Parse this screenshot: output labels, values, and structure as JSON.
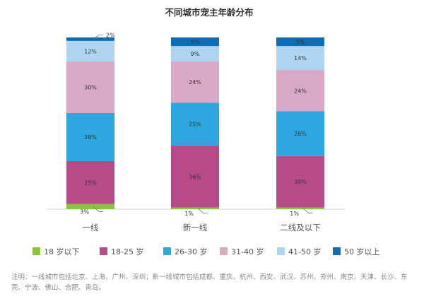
{
  "chart_data": {
    "type": "bar",
    "stacked": true,
    "percent": true,
    "title": "不同城市宠主年龄分布",
    "categories": [
      "一线",
      "新一线",
      "二线及以下"
    ],
    "series": [
      {
        "name": "18 岁以下",
        "color": "#8ac43f",
        "values": [
          3,
          1,
          1
        ]
      },
      {
        "name": "18-25 岁",
        "color": "#b74b89",
        "values": [
          25,
          36,
          30
        ]
      },
      {
        "name": "26-30 岁",
        "color": "#2ea7e0",
        "values": [
          28,
          25,
          26
        ]
      },
      {
        "name": "31-40 岁",
        "color": "#d9a8c6",
        "values": [
          30,
          24,
          24
        ]
      },
      {
        "name": "41-50 岁",
        "color": "#aed4f1",
        "values": [
          12,
          9,
          14
        ]
      },
      {
        "name": "50 岁以上",
        "color": "#0e6db5",
        "values": [
          2,
          5,
          5
        ]
      }
    ],
    "ylim": [
      0,
      100
    ],
    "grid": false,
    "legend_position": "bottom",
    "value_suffix": "%"
  },
  "note": "注明：一线城市包括北京、上海、广州、深圳；新一线城市包括成都、重庆、杭州、西安、武汉、苏州、郑州、南京、天津、长沙、东莞、宁波、佛山、合肥、青岛。"
}
